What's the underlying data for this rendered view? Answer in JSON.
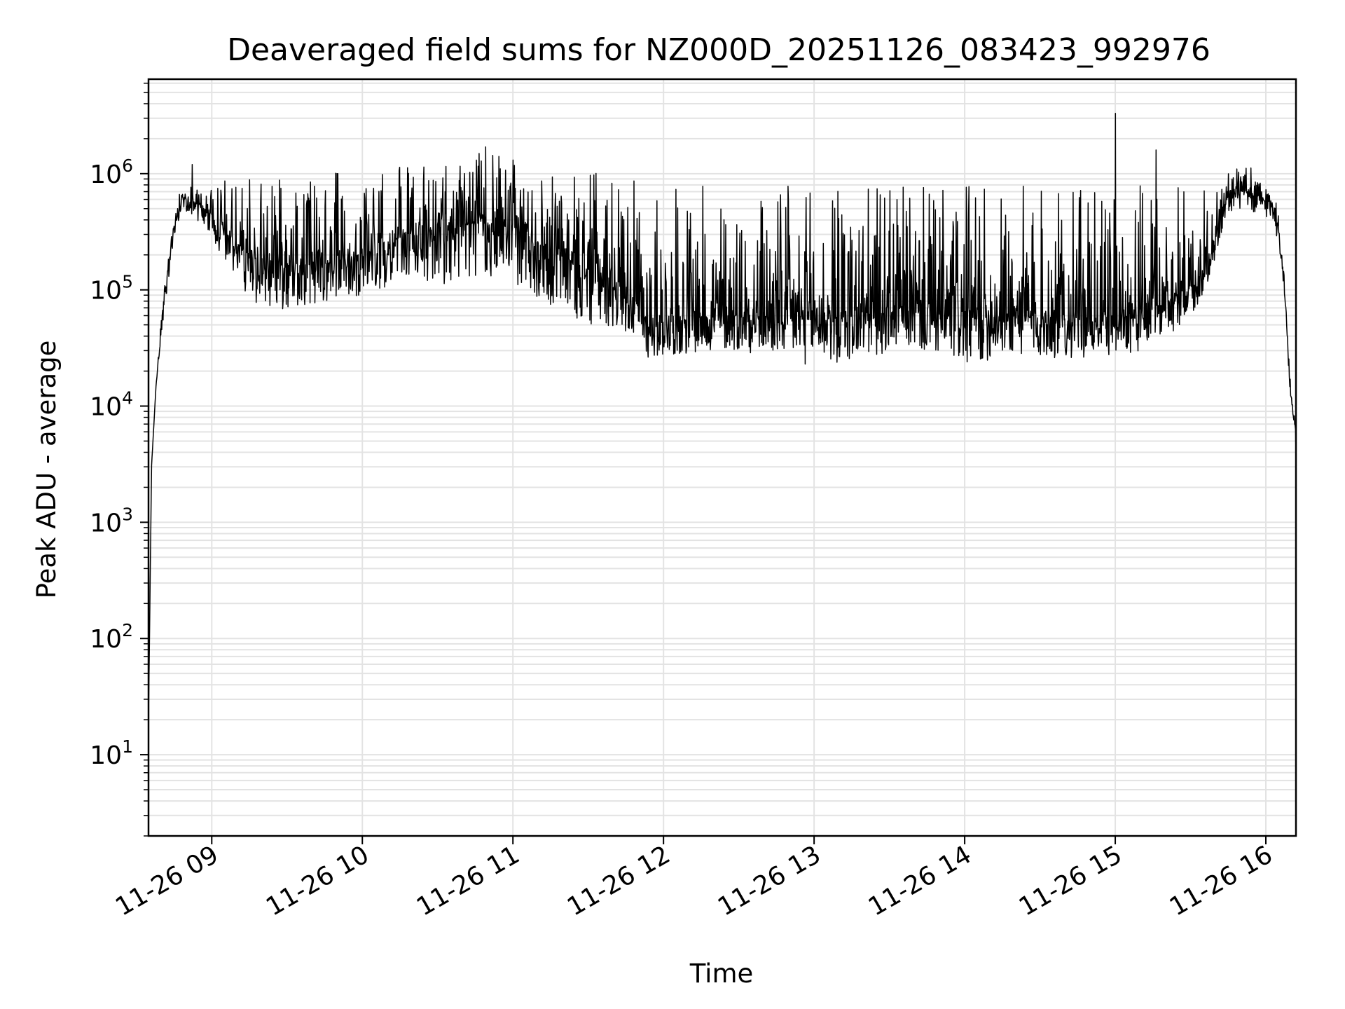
{
  "chart_data": {
    "type": "line",
    "title": "Deaveraged field sums for NZ000D_20251126_083423_992976",
    "xlabel": "Time",
    "ylabel": "Peak ADU - average",
    "yscale": "log",
    "ylim": [
      2,
      6500000
    ],
    "xlim_hours": [
      8.58,
      16.2
    ],
    "grid": true,
    "line_color": "#000000",
    "x_ticks": [
      {
        "hour": 9,
        "label": "11-26 09"
      },
      {
        "hour": 10,
        "label": "11-26 10"
      },
      {
        "hour": 11,
        "label": "11-26 11"
      },
      {
        "hour": 12,
        "label": "11-26 12"
      },
      {
        "hour": 13,
        "label": "11-26 13"
      },
      {
        "hour": 14,
        "label": "11-26 14"
      },
      {
        "hour": 15,
        "label": "11-26 15"
      },
      {
        "hour": 16,
        "label": "11-26 16"
      }
    ],
    "y_ticks": [
      {
        "exp": 1,
        "base": "10",
        "sup": "1"
      },
      {
        "exp": 2,
        "base": "10",
        "sup": "2"
      },
      {
        "exp": 3,
        "base": "10",
        "sup": "3"
      },
      {
        "exp": 4,
        "base": "10",
        "sup": "4"
      },
      {
        "exp": 5,
        "base": "10",
        "sup": "5"
      },
      {
        "exp": 6,
        "base": "10",
        "sup": "6"
      }
    ],
    "series": [
      {
        "name": "Peak ADU - average",
        "envelope": {
          "x_hours": [
            8.58,
            8.6,
            8.63,
            8.66,
            8.7,
            8.75,
            8.8,
            8.85,
            8.9,
            9.0,
            9.1,
            9.2,
            9.3,
            9.5,
            9.8,
            10.0,
            10.3,
            10.5,
            10.8,
            11.0,
            11.3,
            11.5,
            11.75,
            11.9,
            12.1,
            12.5,
            13.0,
            13.3,
            13.6,
            14.0,
            14.3,
            14.6,
            15.0,
            15.2,
            15.4,
            15.55,
            15.65,
            15.75,
            15.85,
            15.95,
            16.05,
            16.1,
            16.13,
            16.16,
            16.2
          ],
          "baseline": [
            20,
            3000,
            15000,
            40000,
            120000,
            350000,
            600000,
            620000,
            550000,
            450000,
            300000,
            230000,
            180000,
            160000,
            170000,
            200000,
            300000,
            330000,
            380000,
            340000,
            200000,
            150000,
            110000,
            50000,
            55000,
            60000,
            55000,
            60000,
            65000,
            55000,
            60000,
            55000,
            55000,
            60000,
            90000,
            120000,
            250000,
            650000,
            700000,
            600000,
            550000,
            250000,
            80000,
            15000,
            6000
          ],
          "noise_up": [
            1,
            1,
            1,
            1.2,
            1.3,
            1.3,
            1.4,
            1.3,
            1.4,
            1.6,
            3,
            4,
            5,
            6,
            6,
            5,
            4,
            4,
            4,
            4,
            5,
            7,
            9,
            14,
            14,
            14,
            14,
            14,
            12,
            14,
            14,
            14,
            12,
            14,
            10,
            6,
            3,
            1.8,
            1.8,
            1.7,
            1.6,
            1.4,
            1.3,
            1.2,
            1.2
          ],
          "noise_down": [
            1,
            1,
            1,
            1.2,
            1.3,
            1.3,
            1.4,
            1.3,
            1.4,
            1.6,
            2,
            2.2,
            2.4,
            2.4,
            2.2,
            2.2,
            2.5,
            3,
            3,
            3,
            3,
            3,
            2.5,
            2,
            2,
            2,
            2.5,
            2.5,
            2,
            2.5,
            2.2,
            2.2,
            2,
            2,
            2,
            1.8,
            1.6,
            1.4,
            1.4,
            1.4,
            1.4,
            1.4,
            1.3,
            1.2,
            1.2
          ]
        },
        "notable_points": [
          {
            "hour": 15.0,
            "value": 3300000
          },
          {
            "hour": 8.87,
            "value": 1200000
          },
          {
            "hour": 10.82,
            "value": 1700000
          },
          {
            "hour": 15.27,
            "value": 1600000
          },
          {
            "hour": 16.2,
            "value": 3800
          }
        ]
      }
    ]
  }
}
